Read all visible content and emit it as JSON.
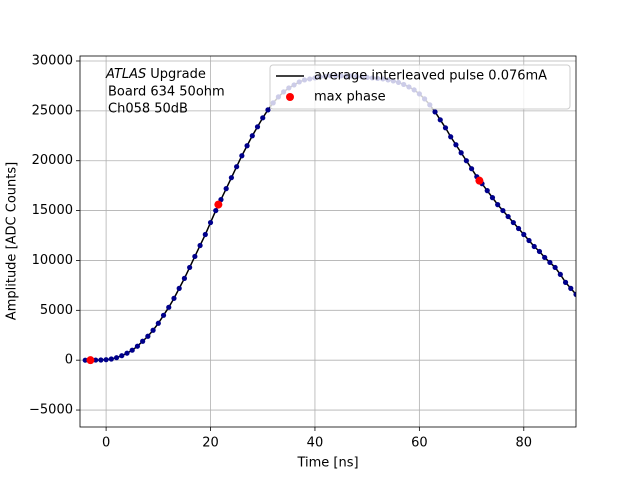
{
  "chart_data": {
    "type": "line",
    "annotation": [
      "ATLAS",
      "Upgrade",
      "Board 634 50ohm",
      "Ch058 50dB"
    ],
    "xlabel": "Time [ns]",
    "ylabel": "Amplitude [ADC Counts]",
    "xlim": [
      -5,
      90
    ],
    "xticks": [
      0,
      20,
      40,
      60,
      80
    ],
    "ylim": [
      -6700,
      30500
    ],
    "yticks": [
      {
        "value": -5000,
        "label": "−5000"
      },
      0,
      5000,
      10000,
      15000,
      20000,
      25000,
      30000
    ],
    "grid": true,
    "legend": "upper right",
    "series": [
      {
        "name": "average interleaved pulse 0.076mA",
        "style": "line+markers",
        "color": "#000000",
        "marker_color": "#00008b",
        "x": [
          -4,
          -3,
          -2,
          -1,
          0,
          1,
          2,
          3,
          4,
          5,
          6,
          7,
          8,
          9,
          10,
          11,
          12,
          13,
          14,
          15,
          16,
          17,
          18,
          19,
          20,
          21,
          22,
          23,
          24,
          25,
          26,
          27,
          28,
          29,
          30,
          31,
          32,
          33,
          34,
          35,
          36,
          37,
          38,
          39,
          40,
          41,
          42,
          43,
          44,
          45,
          46,
          47,
          48,
          49,
          50,
          51,
          52,
          53,
          54,
          55,
          56,
          57,
          58,
          59,
          60,
          61,
          62,
          63,
          64,
          65,
          66,
          67,
          68,
          69,
          70,
          71,
          72,
          73,
          74,
          75,
          76,
          77,
          78,
          79,
          80,
          81,
          82,
          83,
          84,
          85,
          86,
          87,
          88,
          89,
          90
        ],
        "values": [
          0,
          0,
          10,
          20,
          50,
          120,
          250,
          450,
          700,
          1000,
          1400,
          1900,
          2400,
          3000,
          3700,
          4500,
          5300,
          6200,
          7200,
          8200,
          9300,
          10400,
          11500,
          12600,
          13800,
          15000,
          16100,
          17200,
          18300,
          19400,
          20500,
          21500,
          22500,
          23400,
          24300,
          25100,
          25800,
          26400,
          26900,
          27300,
          27600,
          27900,
          28100,
          28200,
          28300,
          28400,
          28450,
          28500,
          28500,
          28500,
          28500,
          28500,
          28450,
          28400,
          28350,
          28300,
          28250,
          28200,
          28100,
          28000,
          27850,
          27650,
          27400,
          27100,
          26700,
          26200,
          25600,
          24900,
          24100,
          23300,
          22400,
          21600,
          20800,
          20000,
          19200,
          18400,
          17700,
          17000,
          16300,
          15600,
          15000,
          14400,
          13800,
          13200,
          12600,
          12000,
          11400,
          10900,
          10300,
          9800,
          9300,
          8600,
          7800,
          7200,
          6600
        ]
      },
      {
        "name": "max phase",
        "style": "markers",
        "color": "#ff0000",
        "x": [
          -3,
          21.5,
          71.5
        ],
        "values": [
          0,
          15600,
          18000
        ]
      }
    ]
  }
}
